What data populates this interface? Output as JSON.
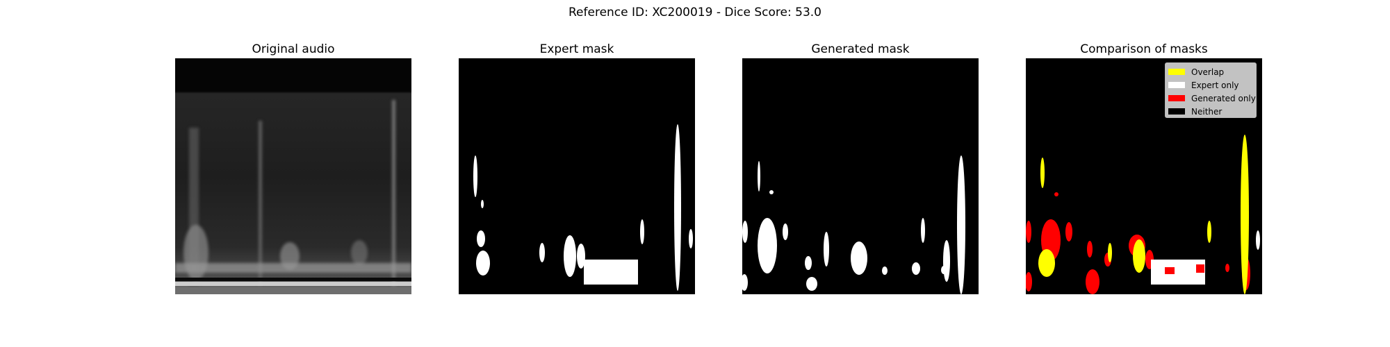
{
  "suptitle": "Reference ID: XC200019 - Dice Score: 53.0",
  "panels": [
    {
      "title": "Original audio"
    },
    {
      "title": "Expert mask"
    },
    {
      "title": "Generated mask"
    },
    {
      "title": "Comparison of masks"
    }
  ],
  "legend": [
    {
      "label": "Overlap",
      "color": "#ffff00"
    },
    {
      "label": "Expert only",
      "color": "#ffffff"
    },
    {
      "label": "Generated only",
      "color": "#ff0000"
    },
    {
      "label": "Neither",
      "color": "#000000"
    }
  ]
}
